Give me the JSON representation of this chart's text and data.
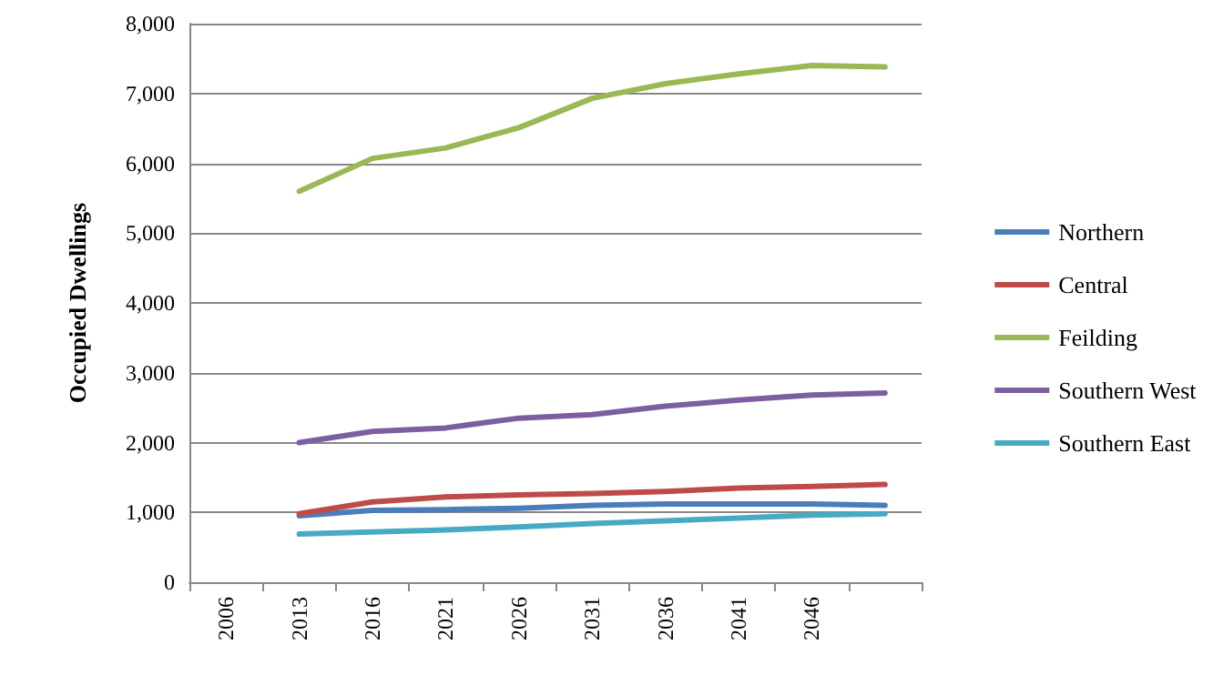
{
  "chart_data": {
    "type": "line",
    "ylabel": "Occupied Dwellings",
    "categories": [
      "2006",
      "2013",
      "2016",
      "2021",
      "2026",
      "2031",
      "2036",
      "2041",
      "2046",
      null
    ],
    "series": [
      {
        "name": "Northern",
        "color": "#4a7ebb",
        "values": [
          null,
          950,
          1030,
          1040,
          1060,
          1100,
          1120,
          1120,
          1120,
          1100
        ]
      },
      {
        "name": "Central",
        "color": "#be4b48",
        "values": [
          null,
          980,
          1150,
          1220,
          1250,
          1270,
          1300,
          1350,
          1370,
          1400
        ]
      },
      {
        "name": "Feilding",
        "color": "#98b954",
        "values": [
          null,
          5600,
          6070,
          6220,
          6510,
          6930,
          7140,
          7280,
          7400,
          7380
        ]
      },
      {
        "name": "Southern West",
        "color": "#7d5fa0",
        "values": [
          null,
          2000,
          2160,
          2210,
          2350,
          2400,
          2520,
          2610,
          2680,
          2710
        ]
      },
      {
        "name": "Southern East",
        "color": "#46aac5",
        "values": [
          null,
          690,
          720,
          750,
          790,
          840,
          880,
          920,
          960,
          980
        ]
      }
    ],
    "ylim": [
      0,
      8000
    ],
    "yticks": [
      0,
      {
        "value": 1000,
        "label": "1,000"
      },
      {
        "value": 2000,
        "label": "2,000"
      },
      {
        "value": 3000,
        "label": "3,000"
      },
      {
        "value": 4000,
        "label": "4,000"
      },
      {
        "value": 5000,
        "label": "5,000"
      },
      {
        "value": 6000,
        "label": "6,000"
      },
      {
        "value": 7000,
        "label": "7,000"
      },
      {
        "value": 8000,
        "label": "8,000"
      }
    ],
    "grid": "y",
    "legend": "right",
    "marker": "none"
  }
}
